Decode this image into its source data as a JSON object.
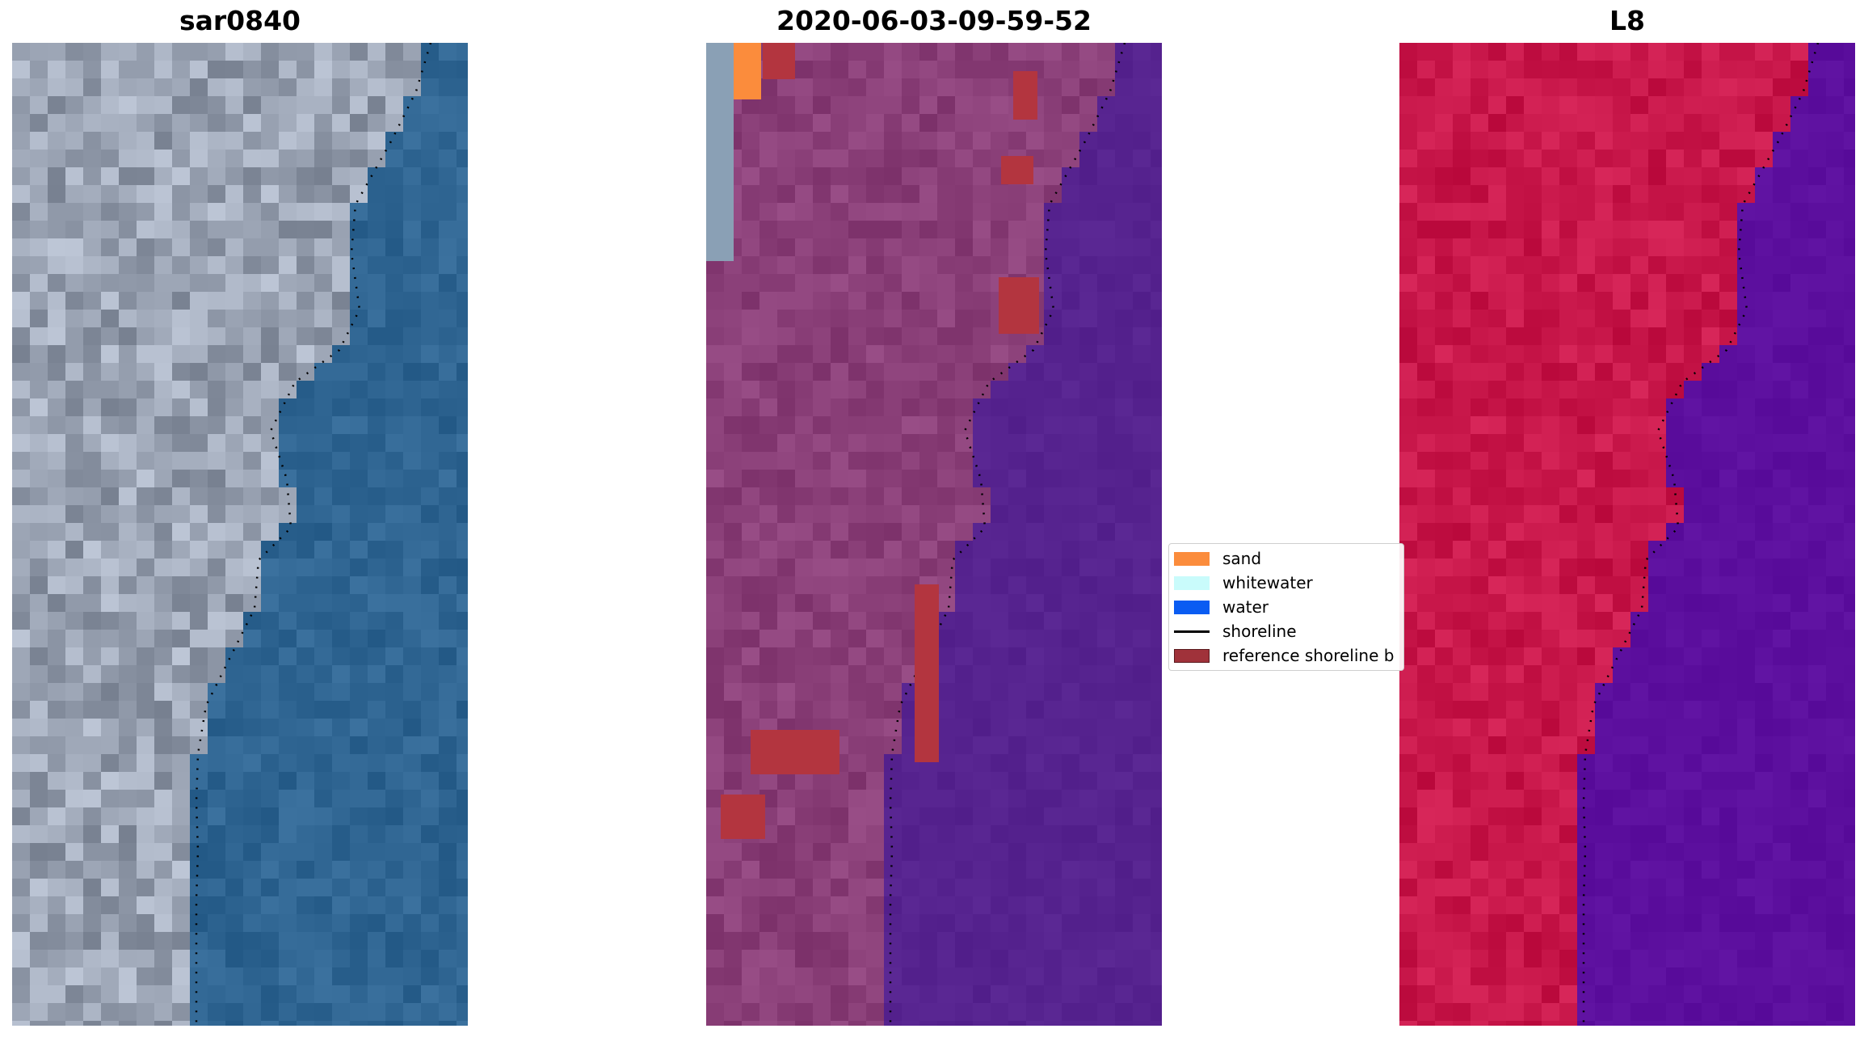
{
  "panels": [
    {
      "title": "sar0840",
      "palette": "true-color"
    },
    {
      "title": "2020-06-03-09-59-52",
      "palette": "classified"
    },
    {
      "title": "L8",
      "palette": "false-color"
    }
  ],
  "legend": {
    "items": [
      {
        "label": "sand",
        "kind": "patch",
        "color": "#fb8c3c"
      },
      {
        "label": "whitewater",
        "kind": "patch",
        "color": "#c9fbfb"
      },
      {
        "label": "water",
        "kind": "patch",
        "color": "#0a5cf2"
      },
      {
        "label": "shoreline",
        "kind": "line",
        "color": "#000000"
      },
      {
        "label": "reference shoreline b",
        "kind": "patch",
        "color": "#a0323a"
      }
    ]
  },
  "colors": {
    "water_true": "#2f6592",
    "land_true": "#9aa3b3",
    "land_classified": "#8a3f78",
    "water_classified": "#56238f",
    "land_false": "#c8174a",
    "water_false": "#5c0f9e",
    "shoreline": "#000000"
  }
}
